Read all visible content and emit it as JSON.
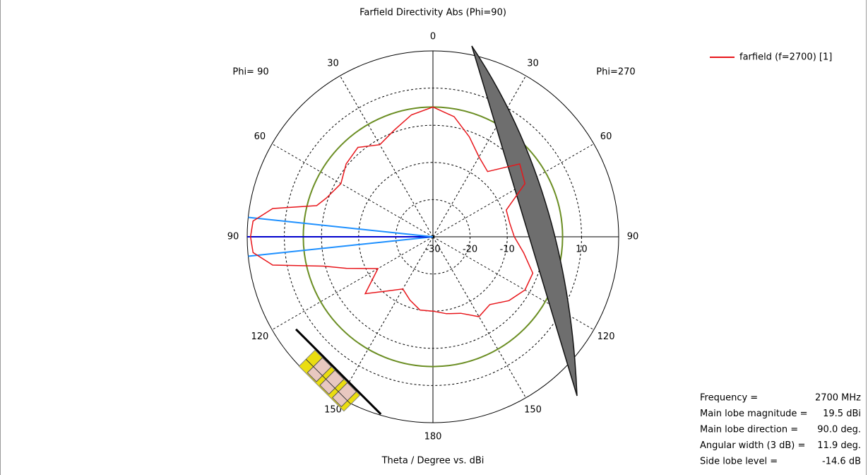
{
  "chart_data": {
    "type": "polar",
    "title": "Farfield Directivity Abs (Phi=90)",
    "xlabel": "Theta / Degree vs. dBi",
    "side_labels": [
      "Phi= 90",
      "Phi=270"
    ],
    "rlim": [
      -30,
      20
    ],
    "rticks": [
      -30,
      -20,
      -10,
      0,
      10
    ],
    "highlight_rtick": 0,
    "angle_ticks": [
      0,
      30,
      60,
      90,
      120,
      150,
      180,
      {
        "value": 210,
        "label": "150"
      },
      {
        "value": 240,
        "label": "120"
      },
      {
        "value": 270,
        "label": "90"
      },
      {
        "value": 300,
        "label": "60"
      },
      {
        "value": 330,
        "label": "30"
      }
    ],
    "reference_level": 4.9,
    "lobe_lines": [
      264,
      270,
      276
    ],
    "x": [
      0,
      10,
      20,
      30,
      40,
      50,
      60,
      70,
      80,
      90,
      100,
      110,
      120,
      130,
      140,
      150,
      160,
      170,
      180,
      190,
      200,
      210,
      220,
      230,
      240,
      250,
      255,
      260,
      265,
      270,
      275,
      280,
      285,
      290,
      300,
      310,
      320,
      330,
      340,
      350
    ],
    "series": [
      {
        "name": "farfield (f=2700) [1]",
        "color": "#e8161b",
        "values": [
          4.9,
          2.8,
          -1.4,
          -5.2,
          -7.1,
          0.5,
          -1.4,
          -9.0,
          -9.0,
          -8.1,
          -5.2,
          -1.4,
          -1.4,
          -3.3,
          -6.2,
          -5.2,
          -8.1,
          -9.0,
          -10.0,
          -10.0,
          -11.9,
          -13.8,
          -11.0,
          -6.2,
          -12.9,
          -5.2,
          0.5,
          13.8,
          18.6,
          19.1,
          18.6,
          13.8,
          2.4,
          0.5,
          -1.4,
          0.5,
          1.4,
          -1.4,
          0.5,
          3.3
        ]
      }
    ],
    "info": [
      {
        "label": "Frequency =",
        "value": "2700 MHz"
      },
      {
        "label": "Main lobe magnitude =",
        "value": "19.5 dBi"
      },
      {
        "label": "Main lobe direction =",
        "value": "90.0 deg."
      },
      {
        "label": "Angular width (3 dB) =",
        "value": "11.9 deg."
      },
      {
        "label": "Side lobe level =",
        "value": "-14.6 dB"
      }
    ]
  }
}
